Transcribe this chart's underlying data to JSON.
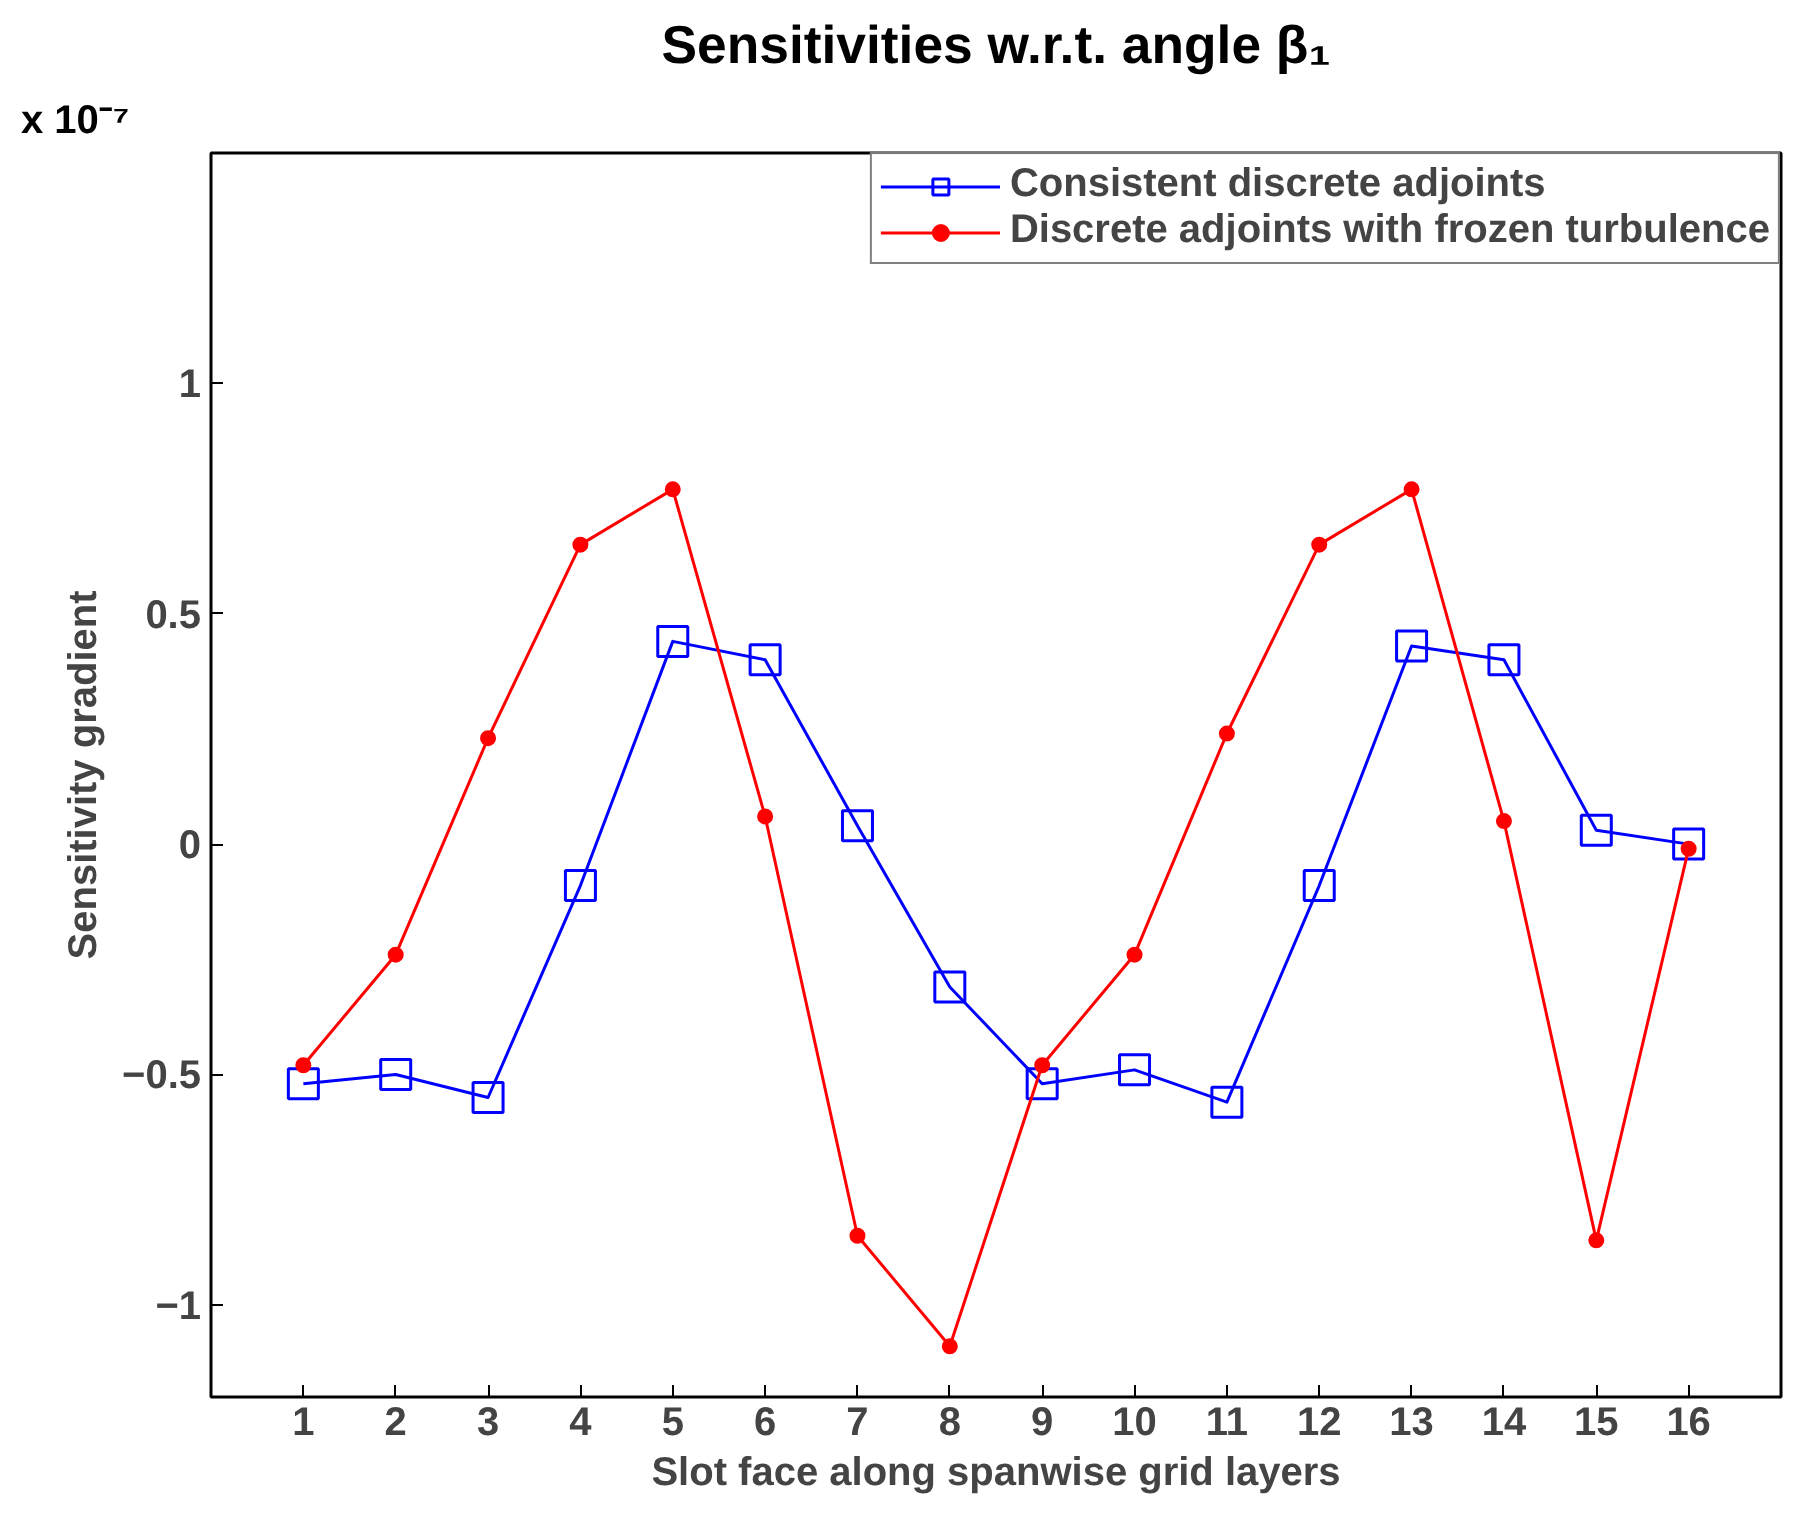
{
  "chart_data": {
    "type": "line",
    "title": "Sensitivities w.r.t. angle β₁",
    "xlabel": "Slot face along spanwise grid layers",
    "ylabel": "Sensitivity gradient",
    "annotations": [
      "x 10⁻⁷"
    ],
    "x": [
      1,
      2,
      3,
      4,
      5,
      6,
      7,
      8,
      9,
      10,
      11,
      12,
      13,
      14,
      15,
      16
    ],
    "xlim": [
      0,
      17
    ],
    "xticks": [
      1,
      2,
      3,
      4,
      5,
      6,
      7,
      8,
      9,
      10,
      11,
      12,
      13,
      14,
      15,
      16
    ],
    "ylim": [
      -1.2,
      1.5
    ],
    "yticks": [
      {
        "value": -1,
        "label": "−1"
      },
      {
        "value": -0.5,
        "label": "−0.5"
      },
      0,
      0.5,
      1
    ],
    "grid": false,
    "legend": "top right",
    "series": [
      {
        "name": "Consistent discrete adjoints",
        "color": "#0000ff",
        "marker": "square",
        "values": [
          -0.52,
          -0.5,
          -0.55,
          -0.09,
          0.44,
          0.4,
          0.04,
          -0.31,
          -0.52,
          -0.49,
          -0.56,
          -0.09,
          0.43,
          0.4,
          0.03,
          0.0
        ]
      },
      {
        "name": "Discrete adjoints with frozen turbulence",
        "color": "#ff0000",
        "marker": "circle",
        "values": [
          -0.48,
          -0.24,
          0.23,
          0.65,
          0.77,
          0.06,
          -0.85,
          -1.09,
          -0.48,
          -0.24,
          0.24,
          0.65,
          0.77,
          0.05,
          -0.86,
          -0.01
        ]
      }
    ]
  }
}
